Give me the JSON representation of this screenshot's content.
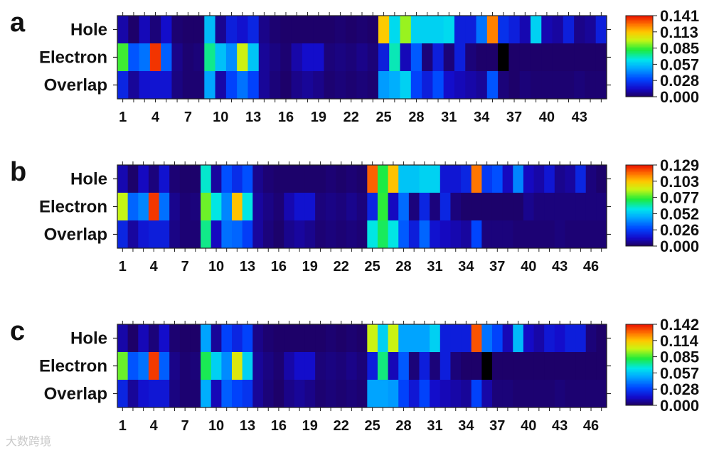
{
  "chart_data": [
    {
      "panel_label": "a",
      "type": "heatmap",
      "rows": [
        "Hole",
        "Electron",
        "Overlap"
      ],
      "n_columns": 45,
      "x_ticks": [
        1,
        4,
        7,
        10,
        13,
        16,
        19,
        22,
        25,
        28,
        31,
        34,
        37,
        40,
        43
      ],
      "colorbar_ticks": [
        "0.141",
        "0.113",
        "0.085",
        "0.057",
        "0.028",
        "0.000"
      ],
      "vmin": 0,
      "vmax": 0.141,
      "values": [
        [
          0.01,
          0.002,
          0.012,
          0.004,
          0.015,
          0.003,
          0.002,
          0.002,
          0.055,
          0.007,
          0.02,
          0.016,
          0.022,
          0.006,
          0.003,
          0.002,
          0.002,
          0.002,
          0.002,
          0.002,
          0.003,
          0.002,
          0.003,
          0.002,
          0.112,
          0.062,
          0.094,
          0.06,
          0.06,
          0.06,
          0.062,
          0.02,
          0.02,
          0.04,
          0.124,
          0.025,
          0.02,
          0.011,
          0.06,
          0.011,
          0.009,
          0.02,
          0.006,
          0.008,
          0.02
        ],
        [
          0.085,
          0.034,
          0.04,
          0.136,
          0.036,
          0.006,
          0.003,
          0.004,
          0.074,
          0.056,
          0.045,
          0.1,
          0.057,
          0.008,
          0.005,
          0.003,
          0.01,
          0.015,
          0.015,
          0.004,
          0.005,
          0.004,
          0.006,
          0.004,
          0.02,
          0.07,
          0.012,
          0.035,
          0.004,
          0.02,
          0.004,
          0.02,
          0.004,
          0.002,
          0.002,
          -0.005,
          0.002,
          0.002,
          0.002,
          0.002,
          0.002,
          0.002,
          0.002,
          0.002,
          0.002
        ],
        [
          0.022,
          0.008,
          0.016,
          0.017,
          0.017,
          0.005,
          0.003,
          0.003,
          0.05,
          0.01,
          0.03,
          0.04,
          0.03,
          0.008,
          0.004,
          0.002,
          0.006,
          0.008,
          0.006,
          0.003,
          0.004,
          0.003,
          0.004,
          0.003,
          0.048,
          0.052,
          0.06,
          0.03,
          0.02,
          0.032,
          0.015,
          0.012,
          0.01,
          0.008,
          0.034,
          0.004,
          0.002,
          0.004,
          0.003,
          0.003,
          0.003,
          0.003,
          0.004,
          0.003,
          0.003
        ]
      ]
    },
    {
      "panel_label": "b",
      "type": "heatmap",
      "rows": [
        "Hole",
        "Electron",
        "Overlap"
      ],
      "n_columns": 47,
      "x_ticks": [
        1,
        4,
        7,
        10,
        13,
        16,
        19,
        22,
        25,
        28,
        31,
        34,
        37,
        40,
        43,
        46
      ],
      "colorbar_ticks": [
        "0.129",
        "0.103",
        "0.077",
        "0.052",
        "0.026",
        "0.000"
      ],
      "vmin": 0,
      "vmax": 0.129,
      "values": [
        [
          0.01,
          0.002,
          0.012,
          0.004,
          0.015,
          0.003,
          0.002,
          0.002,
          0.062,
          0.008,
          0.03,
          0.022,
          0.03,
          0.006,
          0.003,
          0.002,
          0.002,
          0.002,
          0.002,
          0.002,
          0.003,
          0.002,
          0.003,
          0.002,
          0.118,
          0.074,
          0.104,
          0.052,
          0.052,
          0.055,
          0.055,
          0.016,
          0.016,
          0.02,
          0.115,
          0.025,
          0.03,
          0.012,
          0.04,
          0.012,
          0.009,
          0.016,
          0.006,
          0.008,
          0.02,
          0.004,
          0.002
        ],
        [
          0.09,
          0.034,
          0.04,
          0.124,
          0.036,
          0.006,
          0.003,
          0.004,
          0.082,
          0.06,
          0.04,
          0.104,
          0.06,
          0.008,
          0.005,
          0.003,
          0.01,
          0.015,
          0.015,
          0.004,
          0.005,
          0.004,
          0.006,
          0.004,
          0.02,
          0.076,
          0.012,
          0.035,
          0.004,
          0.02,
          0.004,
          0.02,
          0.004,
          0.002,
          0.002,
          0.002,
          0.002,
          0.002,
          0.002,
          0.006,
          0.004,
          0.004,
          0.004,
          0.004,
          0.004,
          0.004,
          0.004
        ],
        [
          0.02,
          0.008,
          0.016,
          0.018,
          0.018,
          0.005,
          0.003,
          0.003,
          0.068,
          0.012,
          0.036,
          0.034,
          0.026,
          0.008,
          0.004,
          0.002,
          0.006,
          0.008,
          0.006,
          0.003,
          0.004,
          0.003,
          0.004,
          0.003,
          0.06,
          0.072,
          0.06,
          0.032,
          0.018,
          0.034,
          0.015,
          0.012,
          0.01,
          0.008,
          0.028,
          0.004,
          0.004,
          0.004,
          0.003,
          0.003,
          0.003,
          0.003,
          0.004,
          0.003,
          0.003,
          0.003,
          0.003
        ]
      ]
    },
    {
      "panel_label": "c",
      "type": "heatmap",
      "rows": [
        "Hole",
        "Electron",
        "Overlap"
      ],
      "n_columns": 47,
      "x_ticks": [
        1,
        4,
        7,
        10,
        13,
        16,
        19,
        22,
        25,
        28,
        31,
        34,
        37,
        40,
        43,
        46
      ],
      "colorbar_ticks": [
        "0.142",
        "0.114",
        "0.085",
        "0.057",
        "0.028",
        "0.000"
      ],
      "vmin": 0,
      "vmax": 0.142,
      "values": [
        [
          0.01,
          0.002,
          0.012,
          0.004,
          0.015,
          0.003,
          0.002,
          0.002,
          0.05,
          0.008,
          0.03,
          0.022,
          0.03,
          0.006,
          0.003,
          0.002,
          0.002,
          0.002,
          0.002,
          0.002,
          0.003,
          0.002,
          0.003,
          0.002,
          0.1,
          0.06,
          0.1,
          0.05,
          0.05,
          0.05,
          0.06,
          0.02,
          0.02,
          0.02,
          0.132,
          0.04,
          0.03,
          0.012,
          0.055,
          0.014,
          0.01,
          0.018,
          0.015,
          0.02,
          0.02,
          0.004,
          0.002
        ],
        [
          0.09,
          0.034,
          0.04,
          0.136,
          0.036,
          0.006,
          0.003,
          0.004,
          0.08,
          0.06,
          0.045,
          0.104,
          0.06,
          0.008,
          0.005,
          0.003,
          0.01,
          0.015,
          0.015,
          0.004,
          0.005,
          0.004,
          0.006,
          0.004,
          0.02,
          0.076,
          0.012,
          0.035,
          0.004,
          0.02,
          0.004,
          0.02,
          0.004,
          0.002,
          0.002,
          -0.005,
          0.002,
          0.002,
          0.002,
          0.002,
          0.002,
          0.002,
          0.002,
          0.002,
          0.002,
          0.002,
          0.002
        ],
        [
          0.022,
          0.008,
          0.016,
          0.018,
          0.018,
          0.005,
          0.003,
          0.003,
          0.052,
          0.012,
          0.036,
          0.03,
          0.026,
          0.008,
          0.004,
          0.002,
          0.006,
          0.008,
          0.006,
          0.003,
          0.004,
          0.003,
          0.004,
          0.003,
          0.05,
          0.05,
          0.048,
          0.03,
          0.018,
          0.03,
          0.015,
          0.012,
          0.01,
          0.008,
          0.03,
          0.01,
          0.004,
          0.004,
          0.003,
          0.003,
          0.003,
          0.003,
          0.004,
          0.003,
          0.003,
          0.003,
          0.003
        ]
      ]
    }
  ],
  "watermark": "大数跨境"
}
